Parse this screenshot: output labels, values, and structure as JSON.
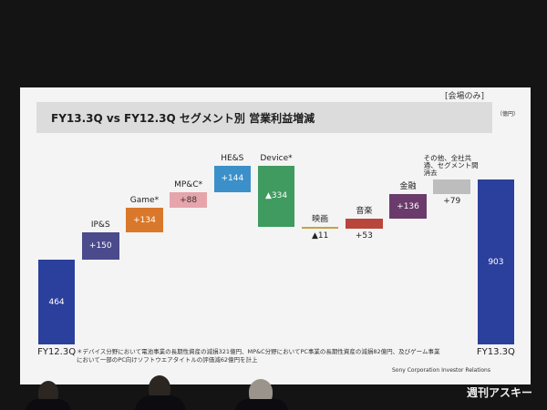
{
  "chart_data": {
    "type": "waterfall",
    "title": "FY13.3Q vs FY12.3Q セグメント別 営業利益増減",
    "tag": "[会場のみ]",
    "unit": "（億円）",
    "categories": [
      "FY12.3Q",
      "IP&S",
      "Game*",
      "MP&C*",
      "HE&S",
      "Device*",
      "映画",
      "音楽",
      "金融",
      "その他、全社共通、セグメント間消去",
      "FY13.3Q"
    ],
    "values": [
      464,
      150,
      134,
      88,
      144,
      -334,
      -11,
      53,
      136,
      79,
      903
    ],
    "value_labels": [
      "464",
      "+150",
      "+134",
      "+88",
      "+144",
      "▲334",
      "▲11",
      "+53",
      "+136",
      "+79",
      "903"
    ],
    "colors": [
      "#2b3f9c",
      "#4b4a8c",
      "#d9782a",
      "#e6a4ab",
      "#3c90c9",
      "#3f9b5f",
      "#c9a245",
      "#b9463b",
      "#6b3b6b",
      "#bdbdbd",
      "#2b3f9c"
    ],
    "footnote": "＊デバイス分野において電池事業の長期性資産の減損321億円、MP&C分野においてPC事業の長期性資産の減損82億円、及びゲーム事業において一部のPC向けソフトウエアタイトルの評価減62億円を計上",
    "source": "Sony Corporation Investor Relations",
    "watermark": "週刊アスキー"
  }
}
